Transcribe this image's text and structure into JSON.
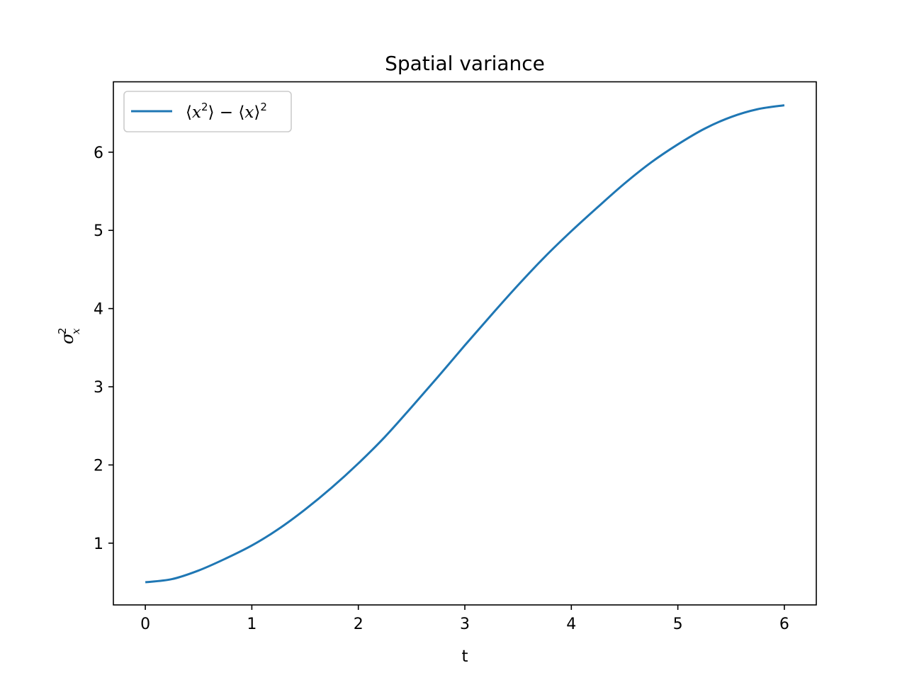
{
  "chart_data": {
    "type": "line",
    "title": "Spatial variance",
    "xlabel": "t",
    "ylabel": {
      "base": "σ",
      "sup": "2",
      "sub": "x"
    },
    "xlim": [
      -0.3,
      6.3
    ],
    "ylim": [
      0.21,
      6.9
    ],
    "xticks": [
      0,
      1,
      2,
      3,
      4,
      5,
      6
    ],
    "yticks": [
      1,
      2,
      3,
      4,
      5,
      6
    ],
    "grid": false,
    "legend_position": "top-left",
    "series": [
      {
        "name": "⟨x²⟩ − ⟨x⟩²",
        "legend": {
          "a": "⟨",
          "b": "x",
          "c": "2",
          "d": "⟩ − ⟨",
          "e": "x",
          "f": "⟩",
          "g": "2"
        },
        "color": "#1f77b4",
        "x": [
          0,
          0.25,
          0.5,
          0.75,
          1,
          1.25,
          1.5,
          1.75,
          2,
          2.25,
          2.5,
          2.75,
          3,
          3.25,
          3.5,
          3.75,
          4,
          4.25,
          4.5,
          4.75,
          5,
          5.25,
          5.5,
          5.75,
          6
        ],
        "y": [
          0.5,
          0.54,
          0.65,
          0.8,
          0.97,
          1.18,
          1.43,
          1.71,
          2.02,
          2.36,
          2.74,
          3.13,
          3.53,
          3.92,
          4.3,
          4.66,
          4.99,
          5.3,
          5.6,
          5.87,
          6.1,
          6.3,
          6.45,
          6.55,
          6.6
        ]
      }
    ]
  }
}
